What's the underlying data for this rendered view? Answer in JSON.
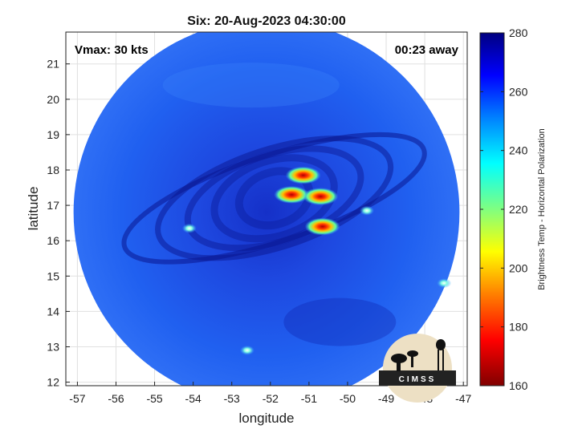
{
  "title": "Six: 20-Aug-2023 04:30:00",
  "overlay": {
    "vmax": "Vmax: 30 kts",
    "time_away": "00:23 away"
  },
  "xaxis": {
    "label": "longitude",
    "ticks": [
      "-57",
      "-56",
      "-55",
      "-54",
      "-53",
      "-52",
      "-51",
      "-50",
      "-49",
      "-48",
      "-47"
    ]
  },
  "yaxis": {
    "label": "latitude",
    "ticks": [
      "21",
      "20",
      "19",
      "18",
      "17",
      "16",
      "15",
      "14",
      "13",
      "12"
    ]
  },
  "colorbar": {
    "label": "Brightness Temp - Horizontal Polarization",
    "ticks": [
      "280",
      "260",
      "240",
      "220",
      "200",
      "180",
      "160"
    ],
    "range": [
      160,
      280
    ],
    "colors": [
      "#800000",
      "#ff0000",
      "#ff8000",
      "#ffff00",
      "#80ff80",
      "#00ffff",
      "#0080ff",
      "#0000ff",
      "#000080"
    ]
  },
  "logo": {
    "text": "CIMSS"
  },
  "chart_data": {
    "type": "heatmap",
    "title": "Six: 20-Aug-2023 04:30:00",
    "xlabel": "longitude",
    "ylabel": "latitude",
    "xlim": [
      -57.3,
      -46.9
    ],
    "ylim": [
      11.9,
      21.9
    ],
    "grid": true,
    "value_label": "Brightness Temp - Horizontal Polarization",
    "value_range": [
      160,
      280
    ],
    "swath": {
      "center_lon": -52.1,
      "center_lat": 16.8,
      "radius_deg": 5.0
    },
    "features": [
      {
        "lon": -51.15,
        "lat": 17.85,
        "value": 195
      },
      {
        "lon": -51.45,
        "lat": 17.3,
        "value": 185
      },
      {
        "lon": -50.7,
        "lat": 17.25,
        "value": 200
      },
      {
        "lon": -50.65,
        "lat": 16.4,
        "value": 175
      },
      {
        "lon": -54.1,
        "lat": 16.35,
        "value": 235
      },
      {
        "lon": -49.5,
        "lat": 16.85,
        "value": 240
      },
      {
        "lon": -47.5,
        "lat": 14.8,
        "value": 240
      },
      {
        "lon": -52.6,
        "lat": 12.9,
        "value": 240
      }
    ]
  }
}
